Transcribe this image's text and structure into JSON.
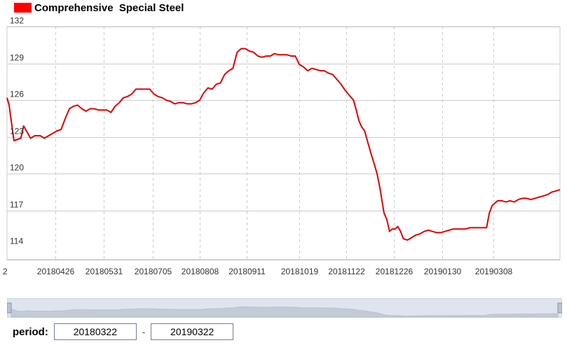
{
  "legend": {
    "label": "Comprehensive  Special Steel",
    "color": "#ff0000"
  },
  "period": {
    "label": "period:",
    "start": "20180322",
    "end": "20190322",
    "separator": "-"
  },
  "chart_data": {
    "type": "line",
    "series": [
      {
        "name": "Comprehensive  Special Steel",
        "color": "#e00000",
        "points": [
          [
            0,
            126.2
          ],
          [
            1.5,
            125.6
          ],
          [
            5,
            122.7
          ],
          [
            10,
            122.9
          ],
          [
            12,
            123.9
          ],
          [
            14,
            123.5
          ],
          [
            17,
            122.9
          ],
          [
            20,
            123.1
          ],
          [
            24,
            123.1
          ],
          [
            27,
            122.9
          ],
          [
            30,
            123.1
          ],
          [
            33,
            123.3
          ],
          [
            36,
            123.5
          ],
          [
            39,
            123.6
          ],
          [
            42,
            124.5
          ],
          [
            45,
            125.3
          ],
          [
            48,
            125.5
          ],
          [
            51,
            125.6
          ],
          [
            54,
            125.3
          ],
          [
            57,
            125.1
          ],
          [
            60,
            125.3
          ],
          [
            63,
            125.3
          ],
          [
            66,
            125.2
          ],
          [
            69,
            125.2
          ],
          [
            72,
            125.2
          ],
          [
            75,
            125.0
          ],
          [
            78,
            125.5
          ],
          [
            81,
            125.8
          ],
          [
            84,
            126.2
          ],
          [
            87,
            126.3
          ],
          [
            90,
            126.5
          ],
          [
            93,
            126.9
          ],
          [
            96,
            126.9
          ],
          [
            99,
            126.9
          ],
          [
            103,
            126.9
          ],
          [
            106,
            126.5
          ],
          [
            109,
            126.3
          ],
          [
            112,
            126.2
          ],
          [
            115,
            126.0
          ],
          [
            118,
            125.9
          ],
          [
            121,
            125.7
          ],
          [
            124,
            125.8
          ],
          [
            127,
            125.8
          ],
          [
            130,
            125.7
          ],
          [
            133,
            125.7
          ],
          [
            136,
            125.8
          ],
          [
            139,
            126.0
          ],
          [
            142,
            126.6
          ],
          [
            145,
            127.0
          ],
          [
            148,
            126.9
          ],
          [
            151,
            127.3
          ],
          [
            154,
            127.4
          ],
          [
            157,
            128.1
          ],
          [
            160,
            128.4
          ],
          [
            163,
            128.6
          ],
          [
            166,
            129.9
          ],
          [
            169,
            130.2
          ],
          [
            172,
            130.2
          ],
          [
            175,
            130.0
          ],
          [
            178,
            129.9
          ],
          [
            181,
            129.6
          ],
          [
            184,
            129.5
          ],
          [
            187,
            129.6
          ],
          [
            190,
            129.6
          ],
          [
            193,
            129.8
          ],
          [
            196,
            129.7
          ],
          [
            199,
            129.7
          ],
          [
            202,
            129.7
          ],
          [
            205,
            129.6
          ],
          [
            208,
            129.6
          ],
          [
            211,
            128.9
          ],
          [
            214,
            128.7
          ],
          [
            217,
            128.4
          ],
          [
            220,
            128.6
          ],
          [
            223,
            128.5
          ],
          [
            226,
            128.4
          ],
          [
            229,
            128.4
          ],
          [
            232,
            128.2
          ],
          [
            235,
            128.1
          ],
          [
            238,
            127.7
          ],
          [
            241,
            127.3
          ],
          [
            244,
            126.8
          ],
          [
            247,
            126.4
          ],
          [
            250,
            126.0
          ],
          [
            252,
            125.2
          ],
          [
            254,
            124.3
          ],
          [
            256,
            123.8
          ],
          [
            258,
            123.5
          ],
          [
            261,
            122.3
          ],
          [
            263,
            121.5
          ],
          [
            265,
            120.8
          ],
          [
            267,
            120.0
          ],
          [
            269,
            118.9
          ],
          [
            272,
            116.8
          ],
          [
            274,
            116.3
          ],
          [
            276,
            115.3
          ],
          [
            278,
            115.5
          ],
          [
            280,
            115.5
          ],
          [
            282,
            115.7
          ],
          [
            284,
            115.3
          ],
          [
            286,
            114.7
          ],
          [
            289,
            114.6
          ],
          [
            292,
            114.8
          ],
          [
            295,
            115.0
          ],
          [
            298,
            115.1
          ],
          [
            301,
            115.3
          ],
          [
            304,
            115.4
          ],
          [
            307,
            115.3
          ],
          [
            310,
            115.2
          ],
          [
            313,
            115.2
          ],
          [
            316,
            115.3
          ],
          [
            319,
            115.4
          ],
          [
            322,
            115.5
          ],
          [
            325,
            115.5
          ],
          [
            328,
            115.5
          ],
          [
            331,
            115.5
          ],
          [
            334,
            115.6
          ],
          [
            337,
            115.6
          ],
          [
            340,
            115.6
          ],
          [
            343,
            115.6
          ],
          [
            346,
            115.6
          ],
          [
            348,
            116.8
          ],
          [
            350,
            117.4
          ],
          [
            352,
            117.6
          ],
          [
            354,
            117.8
          ],
          [
            357,
            117.8
          ],
          [
            360,
            117.7
          ],
          [
            363,
            117.8
          ],
          [
            366,
            117.7
          ],
          [
            369,
            117.9
          ],
          [
            372,
            118.0
          ],
          [
            375,
            118.0
          ],
          [
            378,
            117.9
          ],
          [
            381,
            118.0
          ],
          [
            384,
            118.1
          ],
          [
            387,
            118.2
          ],
          [
            390,
            118.3
          ],
          [
            393,
            118.5
          ],
          [
            396,
            118.6
          ],
          [
            399,
            118.7
          ]
        ]
      }
    ],
    "x_tick_labels": [
      {
        "label": "20180426",
        "day": 35
      },
      {
        "label": "20180531",
        "day": 70
      },
      {
        "label": "20180705",
        "day": 105
      },
      {
        "label": "20180808",
        "day": 139
      },
      {
        "label": "20180911",
        "day": 173
      },
      {
        "label": "20181019",
        "day": 211
      },
      {
        "label": "20181122",
        "day": 245
      },
      {
        "label": "20181226",
        "day": 279
      },
      {
        "label": "20190130",
        "day": 314
      },
      {
        "label": "20190308",
        "day": 351
      }
    ],
    "left_edge_tick_fragment": "2",
    "y_ticks": [
      114,
      117,
      120,
      123,
      126,
      129,
      132
    ],
    "ylim": [
      113,
      132
    ],
    "grid": true,
    "legend_position": "top-left",
    "title": "",
    "xlabel": "",
    "ylabel": ""
  }
}
